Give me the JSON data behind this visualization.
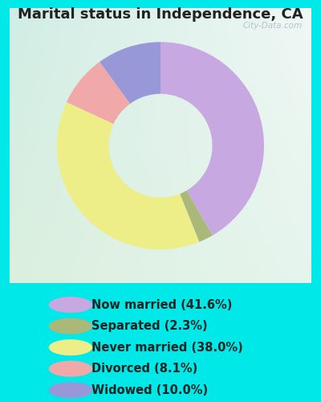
{
  "title": "Marital status in Independence, CA",
  "slices": [
    {
      "label": "Now married (41.6%)",
      "value": 41.6,
      "color": "#c8a8e0"
    },
    {
      "label": "Separated (2.3%)",
      "value": 2.3,
      "color": "#aab87a"
    },
    {
      "label": "Never married (38.0%)",
      "value": 38.0,
      "color": "#eeee88"
    },
    {
      "label": "Divorced (8.1%)",
      "value": 8.1,
      "color": "#f0a8a8"
    },
    {
      "label": "Widowed (10.0%)",
      "value": 10.0,
      "color": "#9898d8"
    }
  ],
  "bg_outer": "#00e8e8",
  "title_fontsize": 13,
  "legend_fontsize": 10.5,
  "watermark": "City-Data.com",
  "start_angle": 90
}
